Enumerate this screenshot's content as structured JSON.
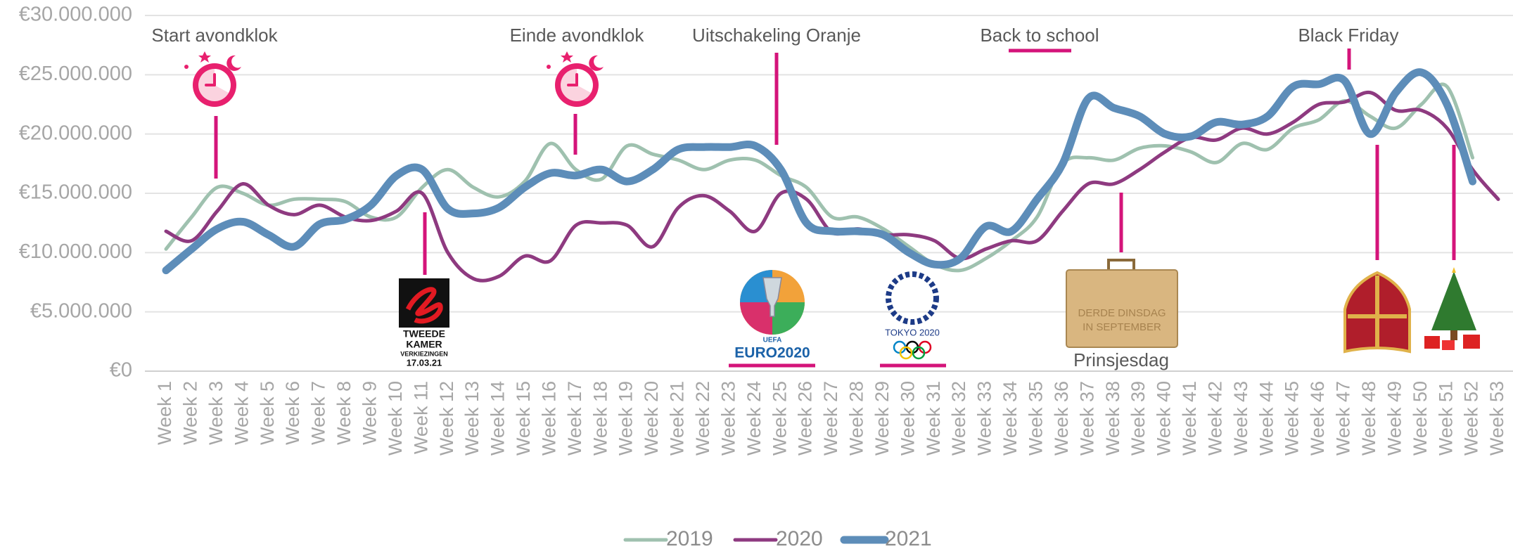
{
  "chart_data": {
    "type": "line",
    "categories": [
      "Week 1",
      "Week 2",
      "Week 3",
      "Week 4",
      "Week 5",
      "Week 6",
      "Week 7",
      "Week 8",
      "Week 9",
      "Week 10",
      "Week 11",
      "Week 12",
      "Week 13",
      "Week 14",
      "Week 15",
      "Week 16",
      "Week 17",
      "Week 18",
      "Week 19",
      "Week 20",
      "Week 21",
      "Week 22",
      "Week 23",
      "Week 24",
      "Week 25",
      "Week 26",
      "Week 27",
      "Week 28",
      "Week 29",
      "Week 30",
      "Week 31",
      "Week 32",
      "Week 33",
      "Week 34",
      "Week 35",
      "Week 36",
      "Week 37",
      "Week 38",
      "Week 39",
      "Week 40",
      "Week 41",
      "Week 42",
      "Week 43",
      "Week 44",
      "Week 45",
      "Week 46",
      "Week 47",
      "Week 48",
      "Week 49",
      "Week 50",
      "Week 51",
      "Week 52",
      "Week 53"
    ],
    "series": [
      {
        "name": "2019",
        "color": "#9fc1af",
        "values": [
          10300000,
          13000000,
          15500000,
          15000000,
          14000000,
          14500000,
          14500000,
          14300000,
          13000000,
          13000000,
          15500000,
          17000000,
          15500000,
          14700000,
          16000000,
          19200000,
          17000000,
          16200000,
          19000000,
          18300000,
          17800000,
          17000000,
          17800000,
          17800000,
          16500000,
          15500000,
          13000000,
          13000000,
          12000000,
          10500000,
          9000000,
          8500000,
          9500000,
          11000000,
          13000000,
          17500000,
          18000000,
          17800000,
          18800000,
          19000000,
          18500000,
          17600000,
          19200000,
          18700000,
          20500000,
          21200000,
          22800000,
          21500000,
          20500000,
          22500000,
          24000000,
          18000000,
          null
        ]
      },
      {
        "name": "2020",
        "color": "#8e3a80",
        "values": [
          11800000,
          11000000,
          13500000,
          15800000,
          14000000,
          13200000,
          14000000,
          13000000,
          12700000,
          13500000,
          15000000,
          10000000,
          7800000,
          8000000,
          9700000,
          9300000,
          12300000,
          12500000,
          12300000,
          10500000,
          13800000,
          14800000,
          13500000,
          11800000,
          15000000,
          14500000,
          11700000,
          12000000,
          11500000,
          11500000,
          11000000,
          9500000,
          10300000,
          11000000,
          11000000,
          13500000,
          15800000,
          15800000,
          17000000,
          18500000,
          19700000,
          19500000,
          20500000,
          20000000,
          21000000,
          22500000,
          22700000,
          23500000,
          22000000,
          22000000,
          20500000,
          17000000,
          14500000
        ]
      },
      {
        "name": "2021",
        "color": "#5d8db9",
        "values": [
          8500000,
          10300000,
          12000000,
          12600000,
          11500000,
          10500000,
          12400000,
          12800000,
          14000000,
          16500000,
          17000000,
          13700000,
          13300000,
          13800000,
          15500000,
          16700000,
          16500000,
          17000000,
          16000000,
          17000000,
          18700000,
          18900000,
          18900000,
          19000000,
          17000000,
          12500000,
          11800000,
          11800000,
          11500000,
          10000000,
          9000000,
          9500000,
          12200000,
          11800000,
          14500000,
          17500000,
          23000000,
          22200000,
          21500000,
          20000000,
          19800000,
          21000000,
          20800000,
          21500000,
          24000000,
          24200000,
          24500000,
          20000000,
          23500000,
          25200000,
          22500000,
          16000000,
          null
        ]
      }
    ],
    "ylim": [
      0,
      30000000
    ],
    "yticks": [
      {
        "value": 0,
        "label": "€0"
      },
      {
        "value": 5000000,
        "label": "€5.000.000"
      },
      {
        "value": 10000000,
        "label": "€10.000.000"
      },
      {
        "value": 15000000,
        "label": "€15.000.000"
      },
      {
        "value": 20000000,
        "label": "€20.000.000"
      },
      {
        "value": 25000000,
        "label": "€25.000.000"
      },
      {
        "value": 30000000,
        "label": "€30.000.000"
      }
    ],
    "grid": true,
    "legend": "bottom",
    "annotations": [
      "Start avondklok",
      "Einde avondklok",
      "Uitschakeling Oranje",
      "Back to school",
      "Black Friday",
      "Prinsjesdag"
    ],
    "logo_texts": {
      "tweede_kamer": [
        "TWEEDE",
        "KAMER",
        "VERKIEZINGEN",
        "17.03.21"
      ],
      "euro": [
        "UEFA",
        "EURO2020"
      ],
      "tokyo": "TOKYO 2020",
      "prinsjesdag": [
        "DERDE DINSDAG",
        "IN SEPTEMBER"
      ]
    }
  }
}
